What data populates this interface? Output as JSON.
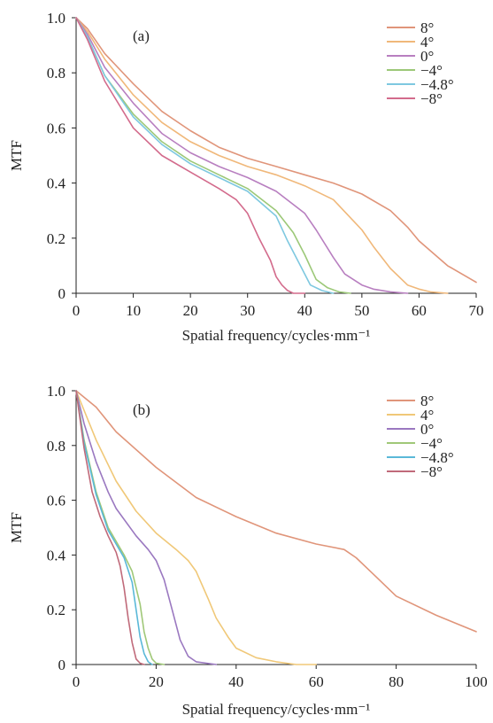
{
  "chart_data": [
    {
      "type": "line",
      "panel_label": "(a)",
      "xlabel": "Spatial frequency/cycles·mm⁻¹",
      "ylabel": "MTF",
      "xlim": [
        0,
        70
      ],
      "ylim": [
        0,
        1.0
      ],
      "xticks": [
        "0",
        "10",
        "20",
        "30",
        "40",
        "50",
        "60",
        "70"
      ],
      "yticks": [
        "0",
        "0.2",
        "0.4",
        "0.6",
        "0.8",
        "1.0"
      ],
      "grid": false,
      "legend_position": "top-right",
      "series": [
        {
          "name": "8°",
          "color": "#e0957a",
          "x": [
            0,
            2,
            5,
            10,
            15,
            20,
            25,
            30,
            35,
            40,
            45,
            50,
            55,
            58,
            60,
            65,
            70
          ],
          "y": [
            1.0,
            0.96,
            0.87,
            0.76,
            0.66,
            0.59,
            0.53,
            0.49,
            0.46,
            0.43,
            0.4,
            0.36,
            0.3,
            0.24,
            0.19,
            0.1,
            0.04
          ]
        },
        {
          "name": "4°",
          "color": "#f0b87a",
          "x": [
            0,
            2,
            5,
            10,
            15,
            20,
            25,
            30,
            35,
            40,
            45,
            50,
            52,
            55,
            58,
            60,
            62,
            65
          ],
          "y": [
            1.0,
            0.95,
            0.85,
            0.72,
            0.62,
            0.55,
            0.5,
            0.46,
            0.43,
            0.39,
            0.34,
            0.23,
            0.17,
            0.09,
            0.03,
            0.015,
            0.005,
            0.0
          ]
        },
        {
          "name": "0°",
          "color": "#b87fc0",
          "x": [
            0,
            2,
            5,
            10,
            15,
            20,
            25,
            30,
            35,
            40,
            42,
            45,
            47,
            50,
            52,
            55,
            58
          ],
          "y": [
            1.0,
            0.94,
            0.82,
            0.69,
            0.58,
            0.51,
            0.46,
            0.42,
            0.37,
            0.29,
            0.23,
            0.13,
            0.07,
            0.03,
            0.015,
            0.005,
            0.0
          ]
        },
        {
          "name": "−4°",
          "color": "#9cc878",
          "x": [
            0,
            2,
            5,
            10,
            15,
            20,
            25,
            30,
            35,
            38,
            40,
            42,
            44,
            46,
            48
          ],
          "y": [
            1.0,
            0.93,
            0.79,
            0.65,
            0.55,
            0.48,
            0.43,
            0.38,
            0.3,
            0.22,
            0.14,
            0.05,
            0.02,
            0.005,
            0.0
          ]
        },
        {
          "name": "−4.8°",
          "color": "#7ec8e0",
          "x": [
            0,
            2,
            5,
            10,
            15,
            20,
            25,
            30,
            35,
            37,
            39,
            41,
            43,
            45
          ],
          "y": [
            1.0,
            0.93,
            0.79,
            0.64,
            0.54,
            0.47,
            0.42,
            0.37,
            0.28,
            0.19,
            0.11,
            0.03,
            0.01,
            0.0
          ]
        },
        {
          "name": "−8°",
          "color": "#d36b8c",
          "x": [
            0,
            2,
            5,
            10,
            15,
            20,
            25,
            28,
            30,
            32,
            34,
            35,
            36,
            37,
            38,
            40
          ],
          "y": [
            1.0,
            0.92,
            0.77,
            0.6,
            0.5,
            0.44,
            0.38,
            0.34,
            0.29,
            0.2,
            0.12,
            0.06,
            0.03,
            0.01,
            0.0,
            0.0
          ]
        }
      ]
    },
    {
      "type": "line",
      "panel_label": "(b)",
      "xlabel": "Spatial frequency/cycles·mm⁻¹",
      "ylabel": "MTF",
      "xlim": [
        0,
        100
      ],
      "ylim": [
        0,
        1.0
      ],
      "xticks": [
        "0",
        "20",
        "40",
        "60",
        "80",
        "100"
      ],
      "yticks": [
        "0",
        "0.2",
        "0.4",
        "0.6",
        "0.8",
        "1.0"
      ],
      "grid": false,
      "legend_position": "top-right",
      "series": [
        {
          "name": "8°",
          "color": "#e0957a",
          "x": [
            0,
            5,
            10,
            20,
            30,
            40,
            50,
            60,
            67,
            70,
            75,
            80,
            90,
            100
          ],
          "y": [
            1.0,
            0.94,
            0.85,
            0.72,
            0.61,
            0.54,
            0.48,
            0.44,
            0.42,
            0.39,
            0.32,
            0.25,
            0.18,
            0.12
          ]
        },
        {
          "name": "4°",
          "color": "#f0c878",
          "x": [
            0,
            5,
            10,
            15,
            20,
            25,
            28,
            30,
            33,
            35,
            38,
            40,
            45,
            50,
            55,
            60
          ],
          "y": [
            1.0,
            0.82,
            0.67,
            0.56,
            0.48,
            0.42,
            0.38,
            0.34,
            0.24,
            0.17,
            0.1,
            0.06,
            0.025,
            0.01,
            0.0,
            0.0
          ]
        },
        {
          "name": "0°",
          "color": "#9a78c0",
          "x": [
            0,
            2,
            5,
            8,
            10,
            15,
            18,
            20,
            22,
            24,
            26,
            28,
            30,
            35
          ],
          "y": [
            1.0,
            0.88,
            0.74,
            0.63,
            0.57,
            0.47,
            0.42,
            0.38,
            0.31,
            0.2,
            0.09,
            0.03,
            0.01,
            0.0
          ]
        },
        {
          "name": "−4°",
          "color": "#a0c878",
          "x": [
            0,
            2,
            5,
            8,
            10,
            12,
            14,
            16,
            17,
            18,
            19,
            20,
            22
          ],
          "y": [
            1.0,
            0.82,
            0.63,
            0.5,
            0.45,
            0.4,
            0.34,
            0.22,
            0.12,
            0.06,
            0.02,
            0.005,
            0.0
          ]
        },
        {
          "name": "−4.8°",
          "color": "#5ab8d8",
          "x": [
            0,
            2,
            5,
            8,
            10,
            12,
            14,
            15,
            16,
            17,
            18,
            19
          ],
          "y": [
            1.0,
            0.81,
            0.62,
            0.49,
            0.44,
            0.39,
            0.3,
            0.2,
            0.1,
            0.04,
            0.01,
            0.0
          ]
        },
        {
          "name": "−8°",
          "color": "#c06a7a",
          "x": [
            0,
            2,
            4,
            6,
            8,
            10,
            11,
            12,
            13,
            14,
            15,
            16,
            17
          ],
          "y": [
            1.0,
            0.79,
            0.63,
            0.54,
            0.47,
            0.41,
            0.36,
            0.28,
            0.17,
            0.08,
            0.02,
            0.005,
            0.0
          ]
        }
      ]
    }
  ]
}
